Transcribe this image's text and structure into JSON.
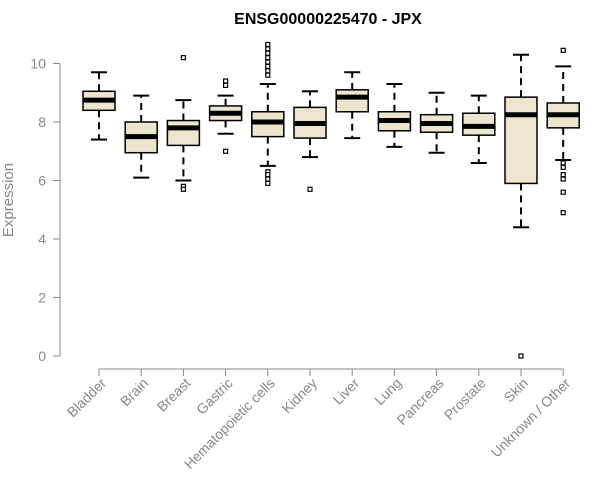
{
  "chart_data": {
    "type": "boxplot",
    "title": "ENSG00000225470 - JPX",
    "ylabel": "Expression",
    "xlabel": "",
    "ylim": [
      0,
      10.8
    ],
    "yticks": [
      "0",
      "2",
      "4",
      "6",
      "8",
      "10"
    ],
    "grid": false,
    "box_fill": "#ece6cf",
    "categories": [
      "Bladder",
      "Brain",
      "Breast",
      "Gastric",
      "Hematopoietic cells",
      "Kidney",
      "Liver",
      "Lung",
      "Pancreas",
      "Prostate",
      "Skin",
      "Unknown / Other"
    ],
    "boxes": [
      {
        "whisker_low": 7.4,
        "q1": 8.4,
        "median": 8.75,
        "q3": 9.05,
        "whisker_high": 9.7,
        "outliers": []
      },
      {
        "whisker_low": 6.1,
        "q1": 6.95,
        "median": 7.5,
        "q3": 8.0,
        "whisker_high": 8.9,
        "outliers": []
      },
      {
        "whisker_low": 6.0,
        "q1": 7.2,
        "median": 7.8,
        "q3": 8.05,
        "whisker_high": 8.75,
        "outliers": [
          10.2,
          5.8,
          5.7
        ]
      },
      {
        "whisker_low": 7.6,
        "q1": 8.05,
        "median": 8.3,
        "q3": 8.55,
        "whisker_high": 8.9,
        "outliers": [
          9.4,
          9.25,
          7.0
        ]
      },
      {
        "whisker_low": 6.5,
        "q1": 7.5,
        "median": 8.0,
        "q3": 8.35,
        "whisker_high": 9.3,
        "outliers": [
          10.65,
          10.5,
          10.35,
          10.2,
          10.05,
          9.9,
          9.75,
          9.6,
          6.3,
          6.2,
          6.05,
          5.9
        ]
      },
      {
        "whisker_low": 6.8,
        "q1": 7.45,
        "median": 7.95,
        "q3": 8.5,
        "whisker_high": 9.05,
        "outliers": [
          5.7
        ]
      },
      {
        "whisker_low": 7.45,
        "q1": 8.35,
        "median": 8.85,
        "q3": 9.1,
        "whisker_high": 9.7,
        "outliers": []
      },
      {
        "whisker_low": 7.15,
        "q1": 7.7,
        "median": 8.05,
        "q3": 8.35,
        "whisker_high": 9.3,
        "outliers": []
      },
      {
        "whisker_low": 6.95,
        "q1": 7.65,
        "median": 7.95,
        "q3": 8.25,
        "whisker_high": 9.0,
        "outliers": []
      },
      {
        "whisker_low": 6.6,
        "q1": 7.55,
        "median": 7.85,
        "q3": 8.3,
        "whisker_high": 8.9,
        "outliers": []
      },
      {
        "whisker_low": 4.4,
        "q1": 5.9,
        "median": 8.25,
        "q3": 8.85,
        "whisker_high": 10.3,
        "outliers": [
          0.0
        ]
      },
      {
        "whisker_low": 6.7,
        "q1": 7.8,
        "median": 8.25,
        "q3": 8.65,
        "whisker_high": 9.9,
        "outliers": [
          10.45,
          6.6,
          6.45,
          6.2,
          6.05,
          5.6,
          4.9
        ]
      }
    ]
  }
}
